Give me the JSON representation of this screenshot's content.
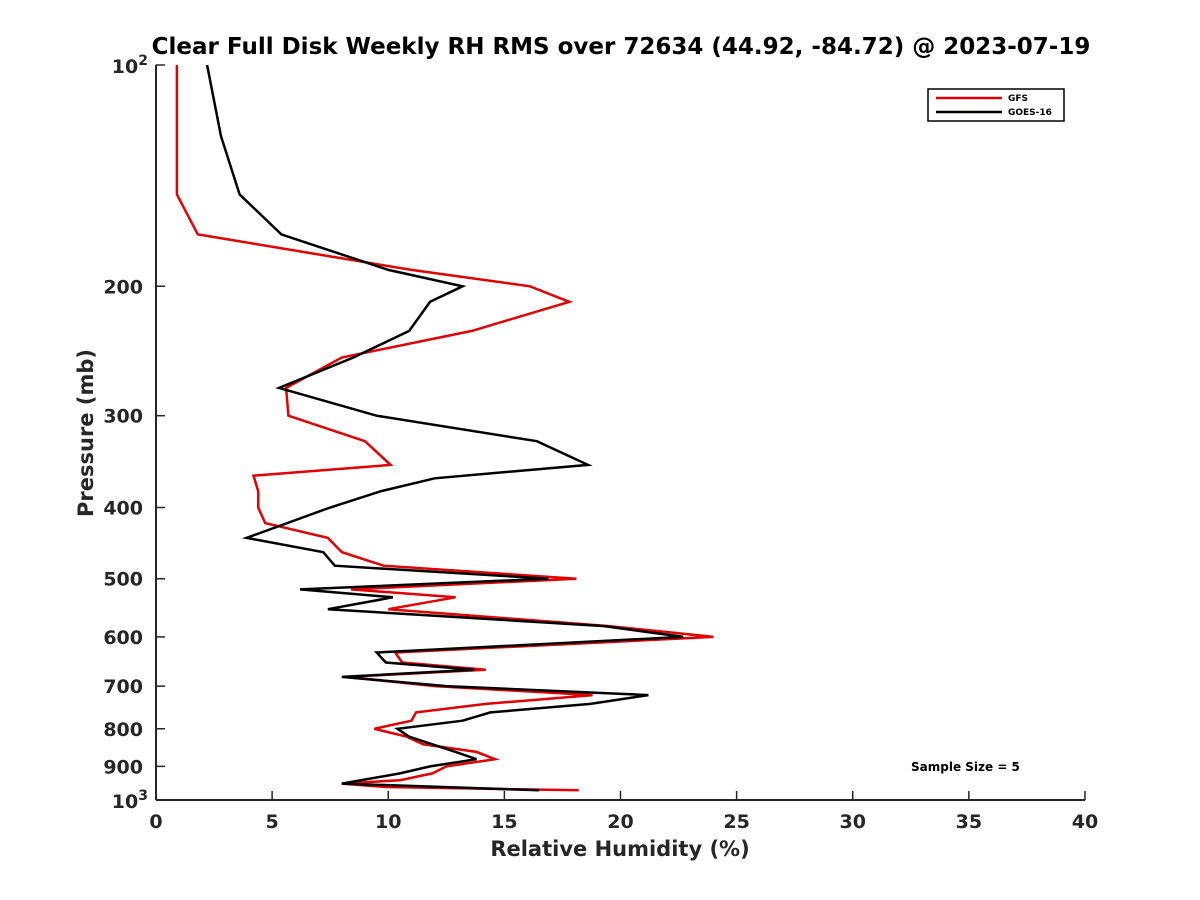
{
  "chart_data": {
    "type": "line",
    "title": "Clear Full Disk Weekly RH RMS over 72634 (44.92, -84.72) @ 2023-07-19",
    "xlabel": "Relative Humidity (%)",
    "ylabel": "Pressure (mb)",
    "xlim": [
      0,
      40
    ],
    "ylim": [
      100,
      1000
    ],
    "yscale": "log",
    "y_reversed": true,
    "x_ticks": [
      0,
      5,
      10,
      15,
      20,
      25,
      30,
      35,
      40
    ],
    "y_ticks": [
      {
        "value": 100,
        "base": "10",
        "exp": "2"
      },
      {
        "value": 200,
        "label": "200"
      },
      {
        "value": 300,
        "label": "300"
      },
      {
        "value": 400,
        "label": "400"
      },
      {
        "value": 500,
        "label": "500"
      },
      {
        "value": 600,
        "label": "600"
      },
      {
        "value": 700,
        "label": "700"
      },
      {
        "value": 800,
        "label": "800"
      },
      {
        "value": 900,
        "label": "900"
      },
      {
        "value": 1000,
        "base": "10",
        "exp": "3"
      }
    ],
    "legend_position": "top-right",
    "annotation": "Sample Size = 5",
    "series": [
      {
        "name": "GFS",
        "color": "#e00000",
        "points": [
          [
            0.9,
            100
          ],
          [
            0.9,
            125
          ],
          [
            0.9,
            150
          ],
          [
            1.8,
            170
          ],
          [
            11.0,
            190
          ],
          [
            16.1,
            200
          ],
          [
            17.8,
            210
          ],
          [
            13.6,
            230
          ],
          [
            8.0,
            250
          ],
          [
            5.6,
            275
          ],
          [
            5.7,
            300
          ],
          [
            9.0,
            325
          ],
          [
            10.1,
            350
          ],
          [
            4.2,
            362
          ],
          [
            4.4,
            380
          ],
          [
            4.4,
            400
          ],
          [
            4.7,
            420
          ],
          [
            7.4,
            440
          ],
          [
            8.0,
            460
          ],
          [
            9.8,
            480
          ],
          [
            18.1,
            500
          ],
          [
            8.4,
            517
          ],
          [
            12.9,
            530
          ],
          [
            10.0,
            550
          ],
          [
            19.5,
            580
          ],
          [
            24.0,
            600
          ],
          [
            10.3,
            630
          ],
          [
            10.6,
            650
          ],
          [
            14.2,
            665
          ],
          [
            8.2,
            680
          ],
          [
            12.0,
            700
          ],
          [
            18.8,
            720
          ],
          [
            14.2,
            740
          ],
          [
            11.2,
            760
          ],
          [
            11.0,
            780
          ],
          [
            9.4,
            800
          ],
          [
            10.8,
            820
          ],
          [
            11.5,
            840
          ],
          [
            13.8,
            860
          ],
          [
            14.6,
            880
          ],
          [
            12.5,
            900
          ],
          [
            11.9,
            920
          ],
          [
            10.5,
            940
          ],
          [
            8.0,
            950
          ],
          [
            9.9,
            960
          ],
          [
            18.2,
            970
          ]
        ]
      },
      {
        "name": "GOES-16",
        "color": "#000000",
        "points": [
          [
            2.2,
            100
          ],
          [
            2.8,
            125
          ],
          [
            3.6,
            150
          ],
          [
            5.4,
            170
          ],
          [
            10.0,
            190
          ],
          [
            13.2,
            200
          ],
          [
            11.8,
            210
          ],
          [
            10.9,
            230
          ],
          [
            8.5,
            250
          ],
          [
            5.3,
            275
          ],
          [
            9.5,
            300
          ],
          [
            16.4,
            325
          ],
          [
            18.6,
            350
          ],
          [
            12.0,
            365
          ],
          [
            9.7,
            380
          ],
          [
            7.5,
            400
          ],
          [
            3.9,
            440
          ],
          [
            7.2,
            460
          ],
          [
            7.7,
            480
          ],
          [
            16.9,
            500
          ],
          [
            6.2,
            517
          ],
          [
            10.2,
            530
          ],
          [
            7.4,
            550
          ],
          [
            19.3,
            580
          ],
          [
            22.7,
            600
          ],
          [
            9.5,
            630
          ],
          [
            9.9,
            650
          ],
          [
            13.7,
            665
          ],
          [
            8.0,
            680
          ],
          [
            12.5,
            700
          ],
          [
            21.2,
            720
          ],
          [
            18.7,
            740
          ],
          [
            14.4,
            760
          ],
          [
            13.2,
            780
          ],
          [
            10.4,
            800
          ],
          [
            10.9,
            820
          ],
          [
            12.9,
            860
          ],
          [
            13.8,
            880
          ],
          [
            11.8,
            900
          ],
          [
            10.5,
            920
          ],
          [
            8.0,
            950
          ],
          [
            16.5,
            970
          ]
        ]
      }
    ]
  }
}
